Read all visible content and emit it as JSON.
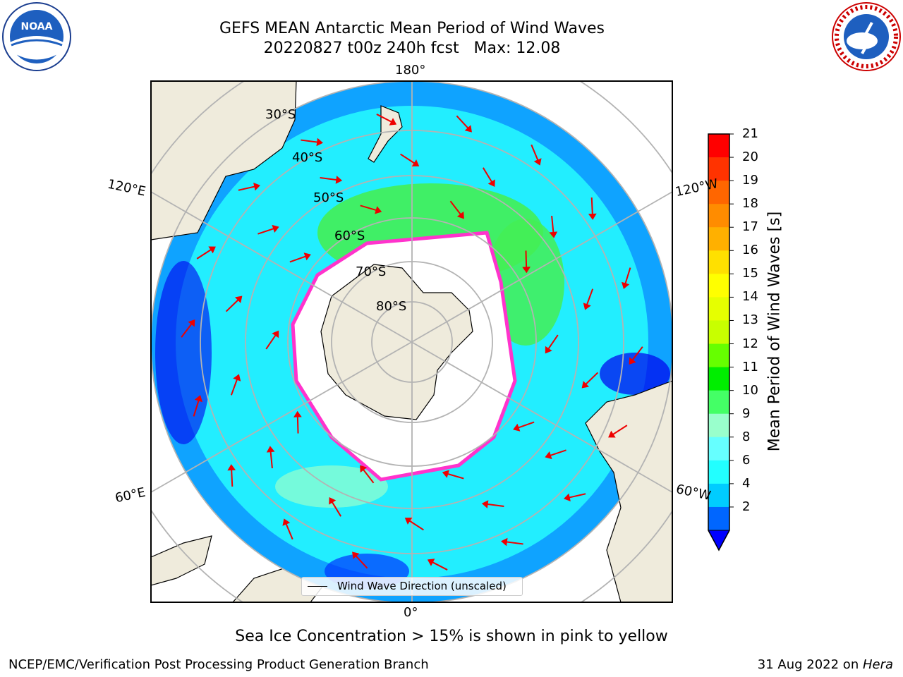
{
  "title": {
    "line1": "GEFS MEAN Antarctic Mean Period of Wind Waves",
    "line2": "20220827 t00z 240h fcst   Max: 12.08"
  },
  "map_labels": {
    "top": "180°",
    "bottom": "0°",
    "left_upper": "120°E",
    "left_lower": "60°E",
    "right_upper": "120°W",
    "right_lower": "60°W",
    "lat_30": "30°S",
    "lat_40": "40°S",
    "lat_50": "50°S",
    "lat_60": "60°S",
    "lat_70": "70°S",
    "lat_80": "80°S"
  },
  "colorbar": {
    "label": "Mean Period of Wind Waves [s]",
    "ticks": [
      "21",
      "20",
      "19",
      "18",
      "17",
      "16",
      "15",
      "14",
      "13",
      "12",
      "11",
      "10",
      "9",
      "8",
      "6",
      "4",
      "2"
    ],
    "colors": [
      "#ff0000",
      "#ff3300",
      "#ff6600",
      "#ff8c00",
      "#ffb000",
      "#ffe000",
      "#ffff00",
      "#e6ff00",
      "#c8ff00",
      "#66ff00",
      "#00ee00",
      "#44ff66",
      "#99ffcc",
      "#66ffff",
      "#22ffff",
      "#00ccff",
      "#0066ff"
    ],
    "extend_color": "#0000ff"
  },
  "legend": {
    "label": "Wind Wave Direction (unscaled)"
  },
  "caption": "Sea Ice Concentration > 15% is shown in pink to yellow",
  "footer": {
    "left": "NCEP/EMC/Verification Post Processing Product Generation Branch",
    "right_prefix": "31 Aug 2022 on ",
    "right_italic": "Hera"
  },
  "logos": {
    "left": "NOAA",
    "right": "NATIONAL WEATHER SERVICE"
  },
  "colors": {
    "land": "#efebdc",
    "ocean_main": "#22eeff",
    "ocean_deep": "#0044ff",
    "arrow": "#ee0000",
    "ice_edge": "#ff33cc"
  }
}
